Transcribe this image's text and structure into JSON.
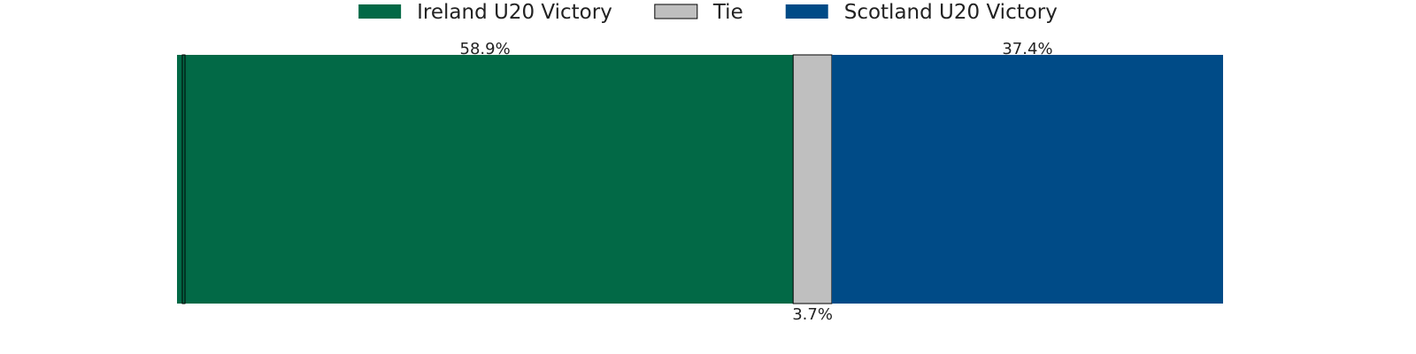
{
  "chart_data": {
    "type": "bar",
    "orientation": "horizontal-stacked",
    "title": "",
    "xlabel": "",
    "ylabel": "",
    "grid": false,
    "legend_position": "top-center",
    "xlim": [
      0,
      100
    ],
    "series": [
      {
        "name": "Ireland U20 Victory",
        "value": 58.9,
        "label": "58.9%",
        "color": "#026946",
        "label_position": "above"
      },
      {
        "name": "Tie",
        "value": 3.7,
        "label": "3.7%",
        "color": "#BFBFBF",
        "label_position": "below"
      },
      {
        "name": "Scotland U20 Victory",
        "value": 37.4,
        "label": "37.4%",
        "color": "#004B87",
        "label_position": "above"
      }
    ]
  }
}
